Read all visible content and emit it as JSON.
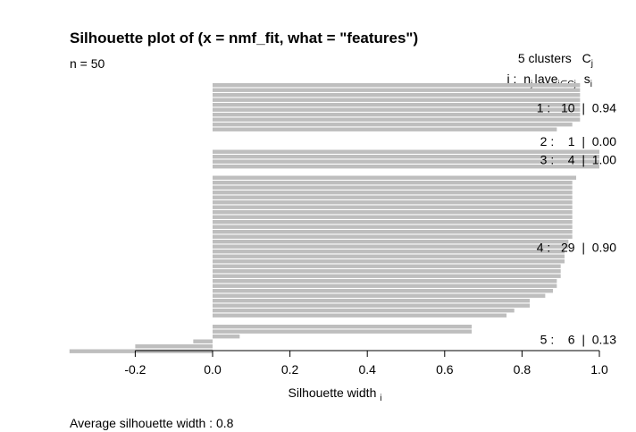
{
  "chart_data": {
    "type": "bar",
    "orientation": "horizontal",
    "title": "Silhouette plot of (x = nmf_fit, what = \"features\")",
    "n_label": "n = 50",
    "clusters_header": "5 clusters",
    "clusters_header_symbol": "C",
    "clusters_header_sub": "j",
    "column_header": {
      "j": "j :",
      "n": "n",
      "n_sub": "j",
      "sep": "|",
      "ave": "ave",
      "ave_sub": "i∈Cj",
      "s": "s",
      "s_sub": "i"
    },
    "xlabel": "Silhouette width",
    "xlabel_sub": "i",
    "xlim": [
      -0.37,
      1.0
    ],
    "xticks": [
      "-0.2",
      "0.0",
      "0.2",
      "0.4",
      "0.6",
      "0.8",
      "1.0"
    ],
    "xtick_values": [
      -0.2,
      0.0,
      0.2,
      0.4,
      0.6,
      0.8,
      1.0
    ],
    "bar_color": "#bebebe",
    "clusters": [
      {
        "cluster": "1",
        "n": "10",
        "ave": "0.94",
        "label": "1 :   10  |  0.94",
        "values": [
          0.95,
          0.95,
          0.95,
          0.95,
          0.95,
          0.95,
          0.95,
          0.95,
          0.93,
          0.89
        ]
      },
      {
        "cluster": "2",
        "n": "1",
        "ave": "0.00",
        "label": "2 :    1  |  0.00",
        "values": [
          0.0
        ]
      },
      {
        "cluster": "3",
        "n": "4",
        "ave": "1.00",
        "label": "3 :    4  |  1.00",
        "values": [
          1.0,
          1.0,
          1.0,
          1.0
        ]
      },
      {
        "cluster": "4",
        "n": "29",
        "ave": "0.90",
        "label": "4 :   29  |  0.90",
        "values": [
          0.94,
          0.93,
          0.93,
          0.93,
          0.93,
          0.93,
          0.93,
          0.93,
          0.93,
          0.93,
          0.93,
          0.93,
          0.93,
          0.92,
          0.92,
          0.91,
          0.91,
          0.91,
          0.9,
          0.9,
          0.9,
          0.89,
          0.89,
          0.88,
          0.86,
          0.82,
          0.82,
          0.78,
          0.76
        ]
      },
      {
        "cluster": "5",
        "n": "6",
        "ave": "0.13",
        "label": "5 :    6  |  0.13",
        "values": [
          0.67,
          0.67,
          0.07,
          -0.05,
          -0.2,
          -0.37
        ]
      }
    ],
    "footer": "Average silhouette width :  0.8"
  }
}
